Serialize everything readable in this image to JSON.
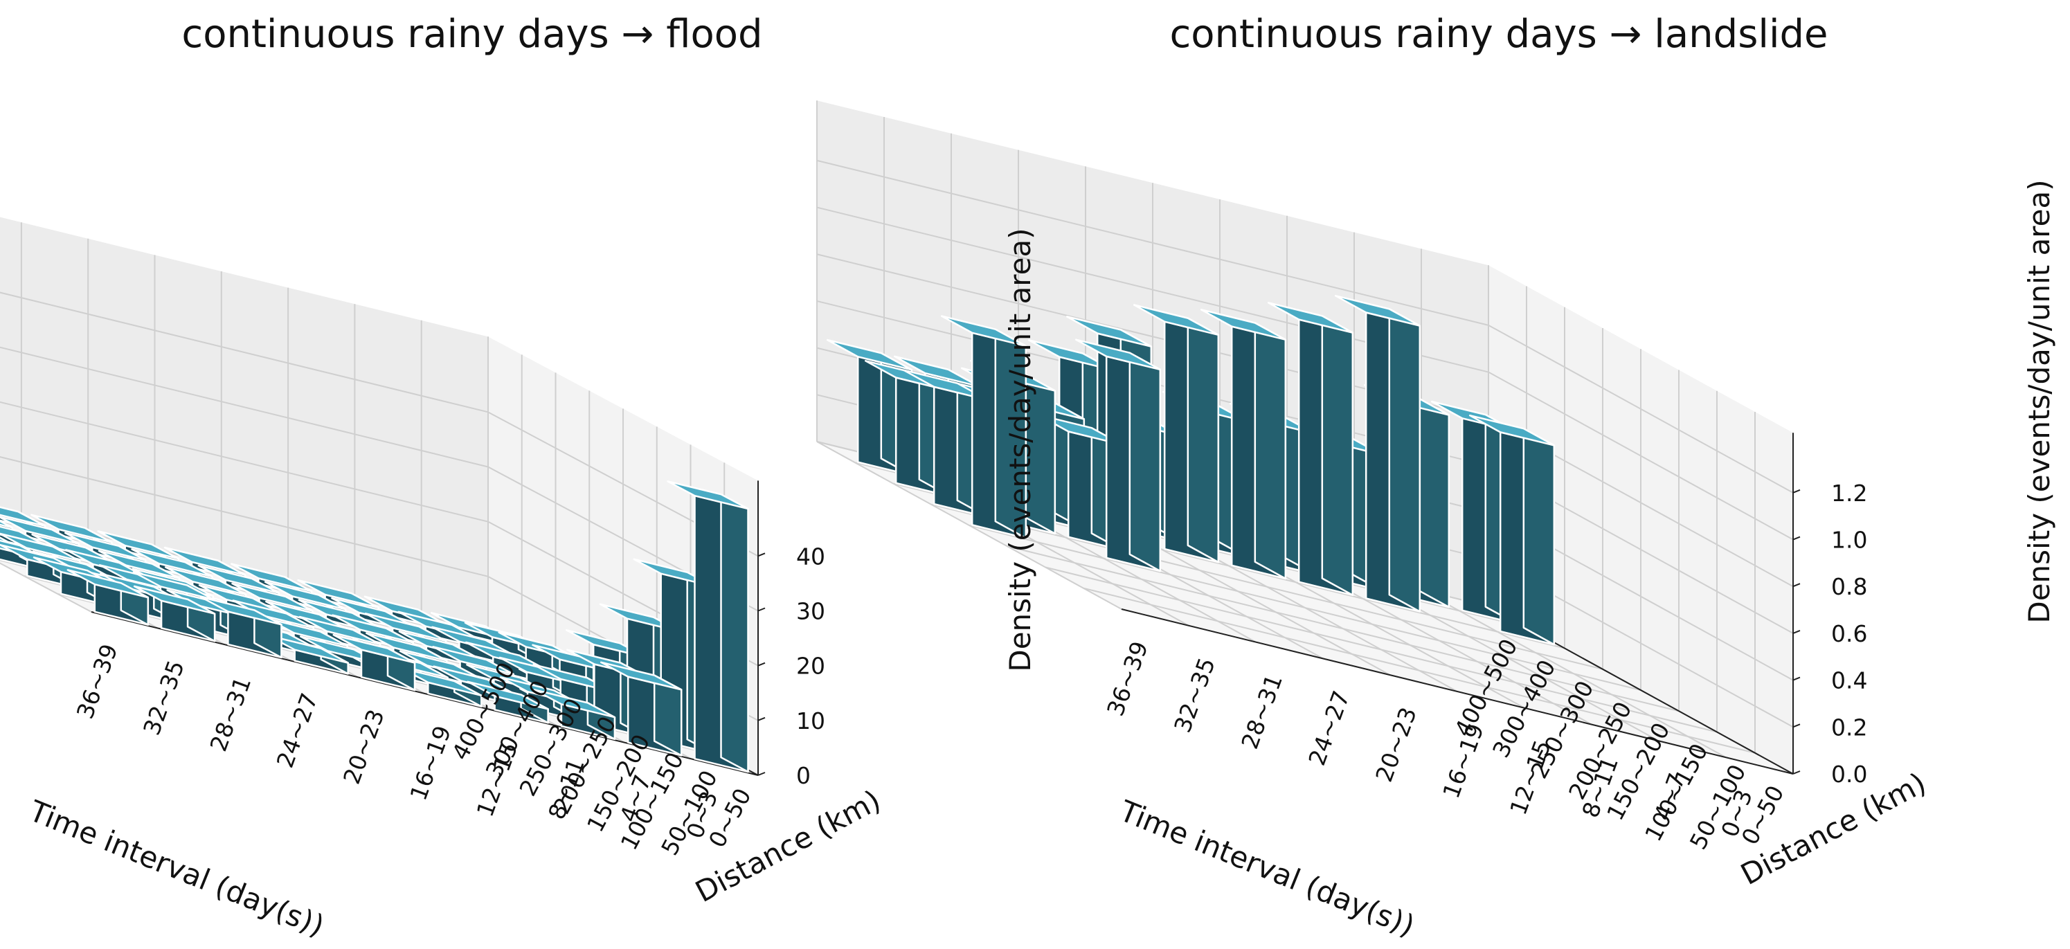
{
  "colors": {
    "bar_front": "#1c4f5f",
    "bar_side": "#24606f",
    "bar_top": "#4aabc4",
    "bar_edge": "#ffffff",
    "pane_back": "#ececec",
    "pane_side": "#f3f3f3",
    "pane_floor": "#f6f6f6",
    "grid": "#cfcfcf"
  },
  "chart_data": [
    {
      "type": "bar3d",
      "title": "continuous rainy days → flood",
      "xlabel": "Time interval (day(s))",
      "ylabel": "Distance (km)",
      "zlabel": "",
      "x_categories": [
        "0~3",
        "4~7",
        "8~11",
        "12~15",
        "16~19",
        "20~23",
        "24~27",
        "28~31",
        "32~35",
        "36~39"
      ],
      "y_categories": [
        "0~50",
        "50~100",
        "100~150",
        "150~200",
        "200~250",
        "250~300",
        "300~400",
        "400~500"
      ],
      "zlim": [
        0,
        48
      ],
      "z_ticks": [
        "0",
        "10",
        "20",
        "30",
        "40"
      ],
      "values": [
        [
          48.0,
          30.5,
          19.0,
          11.0,
          5.0,
          4.0,
          2.5,
          1.0
        ],
        [
          12.0,
          11.0,
          5.0,
          3.0,
          2.5,
          2.0,
          1.5,
          1.0
        ],
        [
          4.0,
          3.0,
          2.0,
          2.0,
          1.5,
          1.5,
          1.0,
          1.0
        ],
        [
          2.5,
          2.0,
          1.5,
          1.5,
          1.5,
          1.0,
          1.0,
          1.0
        ],
        [
          2.0,
          2.0,
          1.5,
          1.5,
          1.0,
          1.0,
          1.0,
          1.0
        ],
        [
          5.0,
          1.5,
          1.5,
          1.5,
          1.0,
          1.0,
          1.0,
          1.0
        ],
        [
          2.0,
          1.5,
          1.5,
          1.0,
          1.0,
          1.0,
          1.0,
          1.0
        ],
        [
          6.0,
          4.0,
          4.0,
          2.0,
          1.5,
          1.0,
          1.0,
          1.0
        ],
        [
          5.0,
          4.0,
          2.0,
          1.5,
          1.5,
          1.0,
          1.0,
          1.0
        ],
        [
          5.0,
          4.0,
          3.0,
          2.0,
          1.5,
          1.0,
          1.0,
          1.0
        ]
      ]
    },
    {
      "type": "bar3d",
      "title": "continuous rainy days → landslide",
      "xlabel": "Time interval (day(s))",
      "ylabel": "Distance (km)",
      "zlabel": "Density (events/day/unit area)",
      "x_categories": [
        "0~3",
        "4~7",
        "8~11",
        "12~15",
        "16~19",
        "20~23",
        "24~27",
        "28~31",
        "32~35",
        "36~39"
      ],
      "y_categories": [
        "0~50",
        "50~100",
        "100~150",
        "150~200",
        "200~250",
        "250~300",
        "300~400",
        "400~500"
      ],
      "zlim": [
        0,
        1.3
      ],
      "z_ticks": [
        "0.0",
        "0.2",
        "0.4",
        "0.6",
        "0.8",
        "1.0",
        "1.2"
      ],
      "values": [
        [
          0,
          0,
          0,
          0,
          0,
          0,
          0.85,
          0.82
        ],
        [
          0,
          0,
          0,
          0,
          0,
          0,
          0,
          0.82
        ],
        [
          0,
          0,
          0,
          0,
          0,
          0,
          1.22,
          0.58
        ],
        [
          0,
          0,
          0,
          0,
          0,
          0,
          1.12,
          0.6
        ],
        [
          0,
          0,
          0,
          0,
          0,
          0,
          1.02,
          0.58
        ],
        [
          0,
          0,
          0,
          0,
          0,
          0,
          0.97,
          0.45
        ],
        [
          0,
          0,
          0,
          0,
          0,
          0,
          0.85,
          0.66
        ],
        [
          0,
          0,
          0,
          0,
          0.86,
          0.45,
          0.47,
          0.47
        ],
        [
          0,
          0,
          0,
          0,
          0,
          0.61,
          0.45,
          0.45
        ],
        [
          0,
          0,
          0,
          0,
          0.82,
          0.5,
          0.45,
          0.45
        ]
      ]
    }
  ]
}
